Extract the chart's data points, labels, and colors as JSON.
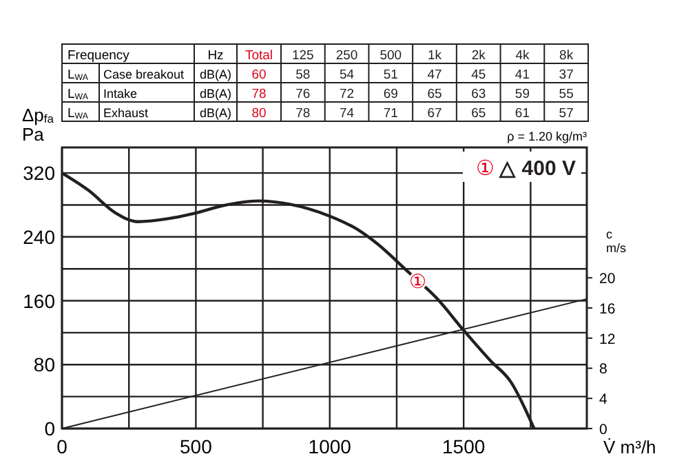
{
  "chart_data": [
    {
      "type": "line",
      "xlabel": "V̇  m³/h",
      "ylabel": "Δp$_{fa}$\nPa",
      "y2label": "c\nm/s",
      "xlim": [
        0,
        1960
      ],
      "ylim": [
        0,
        352
      ],
      "y2lim": [
        0,
        37.3
      ],
      "xticks": [
        0,
        {
          "value": 250,
          "label": null
        },
        500,
        {
          "value": 750,
          "label": null
        },
        1000,
        {
          "value": 1250,
          "label": null
        },
        1500,
        {
          "value": 1750,
          "label": null
        }
      ],
      "yticks": [
        0,
        {
          "value": 40,
          "label": null
        },
        80,
        {
          "value": 120,
          "label": null
        },
        160,
        {
          "value": 200,
          "label": null
        },
        240,
        {
          "value": 280,
          "label": null
        },
        320
      ],
      "y2ticks": [
        0,
        4,
        8,
        12,
        16,
        20
      ],
      "grid": true,
      "legend": "top right",
      "marker": "none",
      "line_style": "solid",
      "series": [
        {
          "name": "① △ 400 V",
          "color": "#231f20",
          "x": [
            0,
            100,
            200,
            283,
            400,
            500,
            600,
            732,
            850,
            1000,
            1100,
            1175,
            1290,
            1400,
            1500,
            1600,
            1675,
            1763
          ],
          "values": [
            320,
            298,
            270,
            259,
            263,
            270,
            279,
            285,
            281,
            266,
            250,
            232,
            197,
            163,
            123,
            85,
            59,
            0
          ]
        },
        {
          "color": "#231f20",
          "axis": "y2",
          "x": [
            0,
            1960
          ],
          "values": [
            0,
            17.2
          ]
        }
      ],
      "annotations": [
        {
          "text": "①",
          "x": 1330,
          "y": 185
        },
        "ρ = 1.20 kg/m³"
      ]
    },
    {
      "type": "heatmap",
      "categories": [
        "Total",
        "125",
        "250",
        "500",
        "1k",
        "2k",
        "4k",
        "8k"
      ],
      "y_categories": [
        "Case breakout",
        "Intake",
        "Exhaust"
      ],
      "cells": [
        [
          60,
          58,
          54,
          51,
          47,
          45,
          41,
          37
        ],
        [
          78,
          76,
          72,
          69,
          65,
          63,
          59,
          55
        ],
        [
          80,
          78,
          74,
          71,
          67,
          65,
          61,
          57
        ]
      ],
      "data_labels": true,
      "colors": [
        "#e2001a",
        "#231f20",
        "#231f20",
        "#231f20",
        "#231f20",
        "#231f20",
        "#231f20",
        "#231f20"
      ],
      "annotations": [
        "Frequency",
        "Hz",
        "L$_{WA}$",
        "dB(A)"
      ]
    }
  ]
}
